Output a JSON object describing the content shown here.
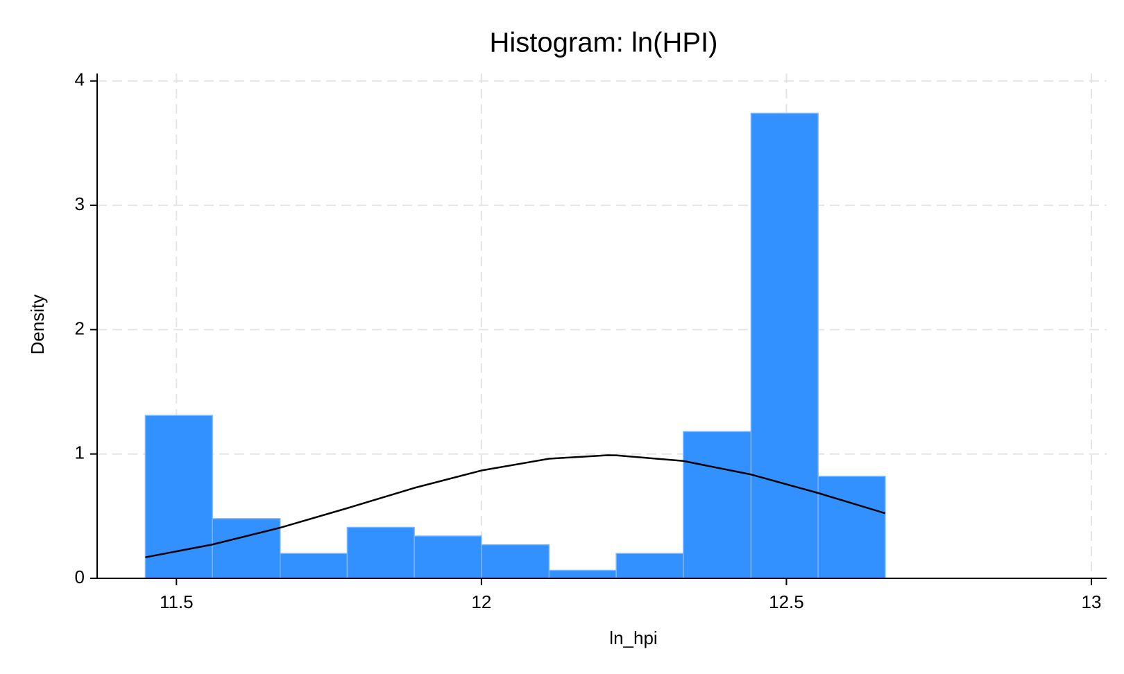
{
  "chart_data": {
    "type": "histogram",
    "title": "Histogram: ln(HPI)",
    "x_label": "ln_hpi",
    "y_label": "Density",
    "bins": [
      11.449,
      11.559,
      11.67,
      11.78,
      11.89,
      12.0,
      12.111,
      12.221,
      12.331,
      12.442,
      12.552,
      12.662
    ],
    "values": [
      1.31,
      0.48,
      0.2,
      0.41,
      0.34,
      0.27,
      0.064,
      0.2,
      1.18,
      3.74,
      0.82
    ],
    "color": "#3390ff",
    "curve": {
      "type": "line",
      "color": "#000000",
      "x": [
        11.449,
        11.559,
        11.67,
        11.78,
        11.89,
        12.0,
        12.111,
        12.207,
        12.221,
        12.331,
        12.442,
        12.552,
        12.662
      ],
      "values": [
        0.169,
        0.272,
        0.407,
        0.564,
        0.727,
        0.867,
        0.962,
        0.99,
        0.989,
        0.944,
        0.835,
        0.686,
        0.523
      ]
    },
    "xlim": [
      11.37,
      13.025
    ],
    "ylim": [
      0,
      4.06
    ],
    "xticks": [
      11.5,
      12,
      12.5,
      13
    ],
    "yticks": [
      0,
      1,
      2,
      3,
      4
    ],
    "grid": true
  }
}
